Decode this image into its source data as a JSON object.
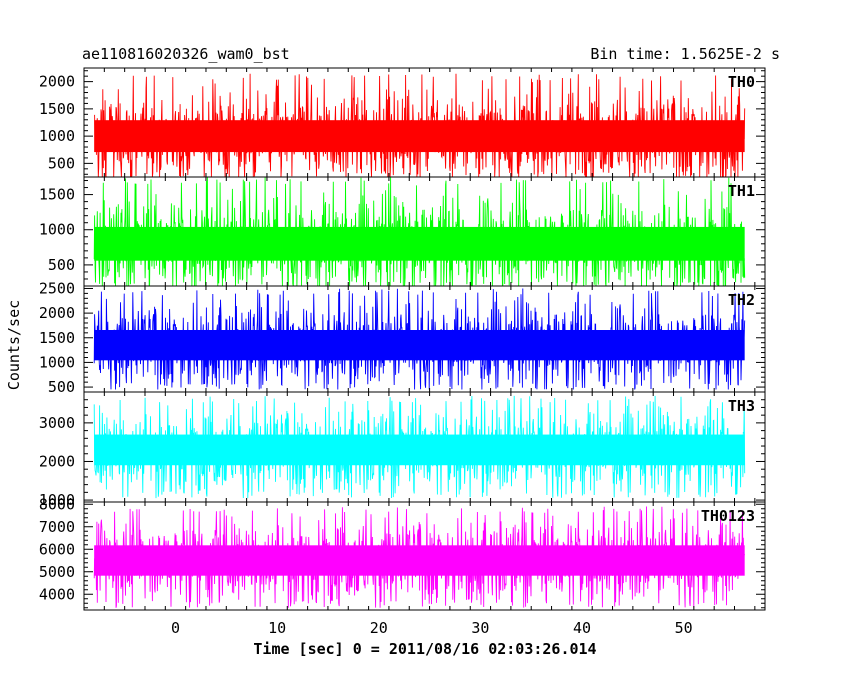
{
  "chart_data": {
    "type": "line",
    "title": "ae110816020326_wam0_bst",
    "subtitle": "Bin time: 1.5625E-2 s",
    "xlabel": "Time [sec] 0 = 2011/08/16 02:03:26.014",
    "ylabel": "Counts/sec",
    "xlim": [
      -9,
      58
    ],
    "x_ticks": [
      0,
      10,
      20,
      30,
      40,
      50
    ],
    "x_range": [
      -8,
      56
    ],
    "grid": false,
    "panels": [
      {
        "name": "TH0",
        "color": "#ff0000",
        "ylim": [
          250,
          2250
        ],
        "y_ticks": [
          500,
          1000,
          1500,
          2000
        ],
        "mean": 1000,
        "low": 200,
        "high": 2150
      },
      {
        "name": "TH1",
        "color": "#00ff00",
        "ylim": [
          200,
          1750
        ],
        "y_ticks": [
          500,
          1000,
          1500
        ],
        "mean": 800,
        "low": 150,
        "high": 1750
      },
      {
        "name": "TH2",
        "color": "#0000ff",
        "ylim": [
          400,
          2550
        ],
        "y_ticks": [
          500,
          1000,
          1500,
          2000,
          2500
        ],
        "mean": 1350,
        "low": 450,
        "high": 2500
      },
      {
        "name": "TH3",
        "color": "#00ffff",
        "ylim": [
          950,
          3800
        ],
        "y_ticks": [
          1000,
          2000,
          3000
        ],
        "mean": 2300,
        "low": 1050,
        "high": 3700
      },
      {
        "name": "TH0123",
        "color": "#ff00ff",
        "ylim": [
          3300,
          8100
        ],
        "y_ticks": [
          4000,
          5000,
          6000,
          7000,
          8000
        ],
        "mean": 5500,
        "low": 3400,
        "high": 7900
      }
    ]
  }
}
